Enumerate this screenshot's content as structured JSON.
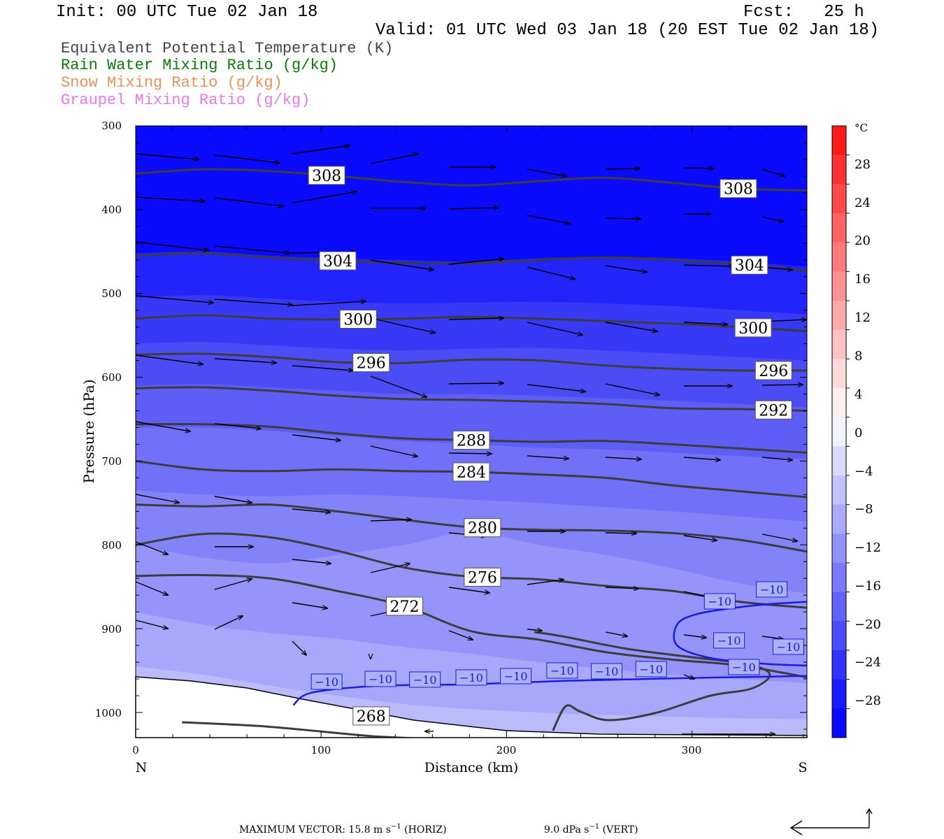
{
  "header": {
    "init": "Init: 00 UTC Tue 02 Jan 18",
    "fcst": "Fcst:   25 h",
    "valid": "Valid: 01 UTC Wed 03 Jan 18 (20 EST Tue 02 Jan 18)"
  },
  "fields": [
    {
      "label": "Equivalent Potential Temperature (K)",
      "color": "#444444"
    },
    {
      "label": "Rain Water Mixing Ratio (g/kg)",
      "color": "#0a7a0a"
    },
    {
      "label": "Snow Mixing Ratio (g/kg)",
      "color": "#e8915a"
    },
    {
      "label": "Graupel Mixing Ratio (g/kg)",
      "color": "#e67ae6"
    }
  ],
  "axes": {
    "xlabel": "Distance (km)",
    "ylabel": "Pressure (hPa)",
    "x_ticks": [
      "0",
      "100",
      "200",
      "300"
    ],
    "y_ticks": [
      "300",
      "400",
      "500",
      "600",
      "700",
      "800",
      "900",
      "1000"
    ],
    "left_end": "N",
    "right_end": "S"
  },
  "colorbar": {
    "unit": "°C",
    "labels": [
      "28",
      "24",
      "20",
      "16",
      "12",
      "8",
      "4",
      "0",
      "−4",
      "−8",
      "−12",
      "−16",
      "−20",
      "−24",
      "−28"
    ]
  },
  "footer": {
    "max_vector": "MAXIMUM VECTOR:  15.8 m s",
    "horiz": " (HORIZ)",
    "vert_value": "9.0 dPa s",
    "vert": " (VERT)",
    "exp": "−1"
  },
  "chart_data": {
    "type": "cross-section",
    "x_range_km": [
      0,
      362
    ],
    "y_range_hPa": [
      300,
      1030
    ],
    "y_scale": "linear-inverted",
    "shaded_field": "temperature (°C)",
    "colorbar_range": [
      -32,
      32
    ],
    "theta_e_contours": [
      {
        "value": 308,
        "pressure": [
          357,
          352,
          354,
          360,
          367,
          371,
          366,
          362,
          368,
          375,
          377
        ]
      },
      {
        "value": 304,
        "pressure": [
          455,
          452,
          457,
          461,
          463,
          464,
          460,
          457,
          460,
          465,
          473
        ]
      },
      {
        "value": 300,
        "pressure": [
          530,
          526,
          530,
          531,
          530,
          528,
          530,
          533,
          536,
          540,
          545
        ]
      },
      {
        "value": 296,
        "pressure": [
          573,
          572,
          576,
          582,
          583,
          579,
          580,
          586,
          590,
          592,
          592
        ]
      },
      {
        "value": 292,
        "pressure": [
          613,
          612,
          616,
          622,
          626,
          627,
          629,
          632,
          637,
          638,
          640
        ]
      },
      {
        "value": 288,
        "pressure": [
          656,
          656,
          659,
          667,
          673,
          675,
          677,
          676,
          680,
          685,
          690
        ]
      },
      {
        "value": 284,
        "pressure": [
          700,
          710,
          712,
          710,
          712,
          713,
          716,
          720,
          729,
          736,
          743
        ]
      },
      {
        "value": 280,
        "pressure": [
          752,
          754,
          752,
          760,
          770,
          779,
          782,
          783,
          786,
          794,
          808
        ]
      },
      {
        "value": 276,
        "pressure": [
          800,
          787,
          791,
          807,
          827,
          838,
          841,
          849,
          855,
          868,
          875
        ]
      },
      {
        "value": 272,
        "pressure": [
          837,
          836,
          840,
          855,
          873,
          903,
          913,
          928,
          937,
          944,
          958
        ]
      }
    ],
    "contour_268_label": "268",
    "isotherm_minus10_label": "−10",
    "isotherm_minus10_note": "−10 °C isotherm near 960 hPa across the section; second branch near 850–925 hPa south of 290 km",
    "max_vector_horiz_ms": 15.8,
    "max_vector_vert_dPa_s": 9.0
  }
}
